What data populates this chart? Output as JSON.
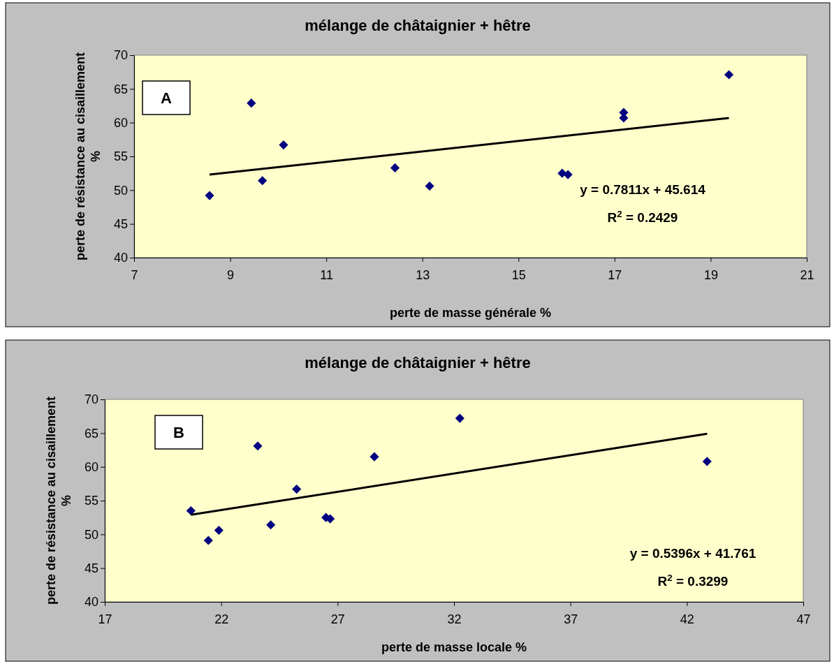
{
  "chart_data": [
    {
      "type": "scatter",
      "title": "mélange de châtaignier + hêtre",
      "xlabel": "perte de masse générale %",
      "ylabel": "perte de résistance au cisaillement %",
      "xlim": [
        7,
        21
      ],
      "xticks": [
        7,
        9,
        11,
        13,
        15,
        17,
        19,
        21
      ],
      "ylim": [
        40,
        70
      ],
      "yticks": [
        40,
        45,
        50,
        55,
        60,
        65,
        70
      ],
      "grid": false,
      "marker": "diamond",
      "annotations": [
        "A",
        "y = 0.7811x + 45.614",
        "R$^{2}$ = 0.2429"
      ],
      "series": [
        {
          "color": "#000080",
          "x": [
            8.57,
            9.44,
            9.67,
            10.11,
            12.43,
            13.15,
            15.91,
            16.03,
            17.19,
            17.19,
            19.38
          ],
          "values": [
            49.2,
            62.9,
            51.4,
            56.7,
            53.3,
            50.6,
            52.5,
            52.3,
            61.5,
            60.7,
            67.1
          ]
        },
        {
          "type": "line",
          "color": "#000000",
          "marker": "none",
          "line_style": "solid",
          "x": [
            8.57,
            19.38
          ],
          "values": [
            52.3,
            60.7
          ]
        }
      ]
    },
    {
      "type": "scatter",
      "title": "mélange de châtaignier + hêtre",
      "xlabel": "perte de masse locale %",
      "ylabel": "perte de résistance au cisaillement %",
      "xlim": [
        17,
        47
      ],
      "xticks": [
        17,
        22,
        27,
        32,
        37,
        42,
        47
      ],
      "ylim": [
        40,
        70
      ],
      "yticks": [
        40,
        45,
        50,
        55,
        60,
        65,
        70
      ],
      "grid": false,
      "marker": "diamond",
      "annotations": [
        "B",
        "y = 0.5396x + 41.761",
        "R$^{2}$ = 0.3299"
      ],
      "series": [
        {
          "color": "#000080",
          "x": [
            20.7,
            21.45,
            21.9,
            23.57,
            24.13,
            25.24,
            26.5,
            26.68,
            28.58,
            32.25,
            42.87
          ],
          "values": [
            53.5,
            49.1,
            50.6,
            63.1,
            51.4,
            56.7,
            52.5,
            52.3,
            61.5,
            67.2,
            60.8
          ]
        },
        {
          "type": "line",
          "color": "#000000",
          "marker": "none",
          "line_style": "solid",
          "x": [
            20.7,
            42.87
          ],
          "values": [
            52.9,
            64.9
          ]
        }
      ]
    }
  ]
}
